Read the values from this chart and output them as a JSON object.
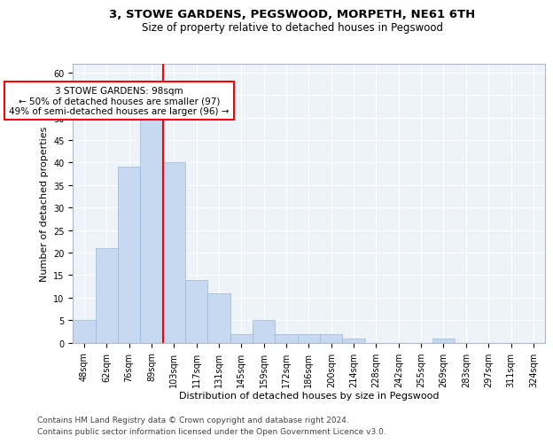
{
  "title": "3, STOWE GARDENS, PEGSWOOD, MORPETH, NE61 6TH",
  "subtitle": "Size of property relative to detached houses in Pegswood",
  "xlabel": "Distribution of detached houses by size in Pegswood",
  "ylabel": "Number of detached properties",
  "bar_labels": [
    "48sqm",
    "62sqm",
    "76sqm",
    "89sqm",
    "103sqm",
    "117sqm",
    "131sqm",
    "145sqm",
    "159sqm",
    "172sqm",
    "186sqm",
    "200sqm",
    "214sqm",
    "228sqm",
    "242sqm",
    "255sqm",
    "269sqm",
    "283sqm",
    "297sqm",
    "311sqm",
    "324sqm"
  ],
  "bar_values": [
    5,
    21,
    39,
    50,
    40,
    14,
    11,
    2,
    5,
    2,
    2,
    2,
    1,
    0,
    0,
    0,
    1,
    0,
    0,
    0,
    0
  ],
  "bar_color": "#c6d9f0",
  "bar_edge_color": "#9ab8d8",
  "vline_color": "red",
  "annotation_text": "3 STOWE GARDENS: 98sqm\n← 50% of detached houses are smaller (97)\n49% of semi-detached houses are larger (96) →",
  "annotation_box_color": "white",
  "annotation_box_edge_color": "red",
  "ylim": [
    0,
    62
  ],
  "yticks": [
    0,
    5,
    10,
    15,
    20,
    25,
    30,
    35,
    40,
    45,
    50,
    55,
    60
  ],
  "footer1": "Contains HM Land Registry data © Crown copyright and database right 2024.",
  "footer2": "Contains public sector information licensed under the Open Government Licence v3.0.",
  "bg_color": "#eef2f9",
  "grid_color": "#ffffff",
  "title_fontsize": 9.5,
  "subtitle_fontsize": 8.5,
  "tick_fontsize": 7,
  "ylabel_fontsize": 8,
  "xlabel_fontsize": 8,
  "annotation_fontsize": 7.5,
  "footer_fontsize": 6.5
}
